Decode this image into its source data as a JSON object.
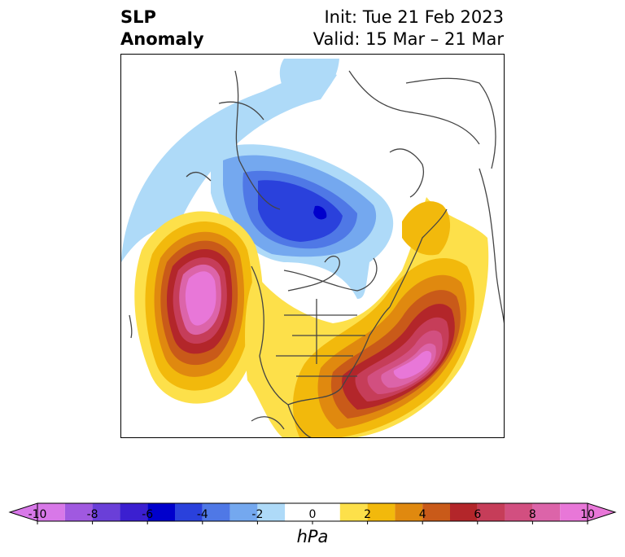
{
  "title": {
    "variable_line1": "SLP",
    "variable_line2": "Anomaly",
    "init": "Init: Tue 21 Feb 2023",
    "valid": "Valid: 15 Mar – 21 Mar"
  },
  "colorbar": {
    "units": "hPa",
    "tick_labels": [
      "-10",
      "-8",
      "-6",
      "-4",
      "-2",
      "0",
      "2",
      "4",
      "6",
      "8",
      "10"
    ],
    "bins": [
      {
        "range": "-10 to -9",
        "color": "#d878e8"
      },
      {
        "range": "-9 to -8",
        "color": "#a059e0"
      },
      {
        "range": "-8 to -7",
        "color": "#6a3fd8"
      },
      {
        "range": "-7 to -6",
        "color": "#3b1fd0"
      },
      {
        "range": "-6 to -5",
        "color": "#0000cc"
      },
      {
        "range": "-5 to -4",
        "color": "#2a41dc"
      },
      {
        "range": "-4 to -3",
        "color": "#4f78e6"
      },
      {
        "range": "-3 to -2",
        "color": "#74a8ef"
      },
      {
        "range": "-2 to -1",
        "color": "#aedaf8"
      },
      {
        "range": "-1 to 1",
        "color": "#ffffff"
      },
      {
        "range": "1 to 2",
        "color": "#fde04a"
      },
      {
        "range": "2 to 3",
        "color": "#f2b90c"
      },
      {
        "range": "3 to 4",
        "color": "#e0890f"
      },
      {
        "range": "4 to 5",
        "color": "#c95a19"
      },
      {
        "range": "5 to 6",
        "color": "#b3262a"
      },
      {
        "range": "6 to 7",
        "color": "#c63d59"
      },
      {
        "range": "7 to 8",
        "color": "#d24f80"
      },
      {
        "range": "8 to 9",
        "color": "#dc64a9"
      },
      {
        "range": "9 to 10",
        "color": "#e877d8"
      }
    ],
    "extend": "both"
  },
  "map": {
    "projection": "north-polar stereographic",
    "features": [
      {
        "name": "pacific-high-anomaly",
        "sign": "positive",
        "peak_hpa": 10
      },
      {
        "name": "atlantic-high-anomaly",
        "sign": "positive",
        "peak_hpa": 9
      },
      {
        "name": "arctic-low-anomaly",
        "sign": "negative",
        "peak_hpa": -6
      },
      {
        "name": "north-pacific-low-arc",
        "sign": "negative",
        "peak_hpa": -2
      }
    ]
  }
}
